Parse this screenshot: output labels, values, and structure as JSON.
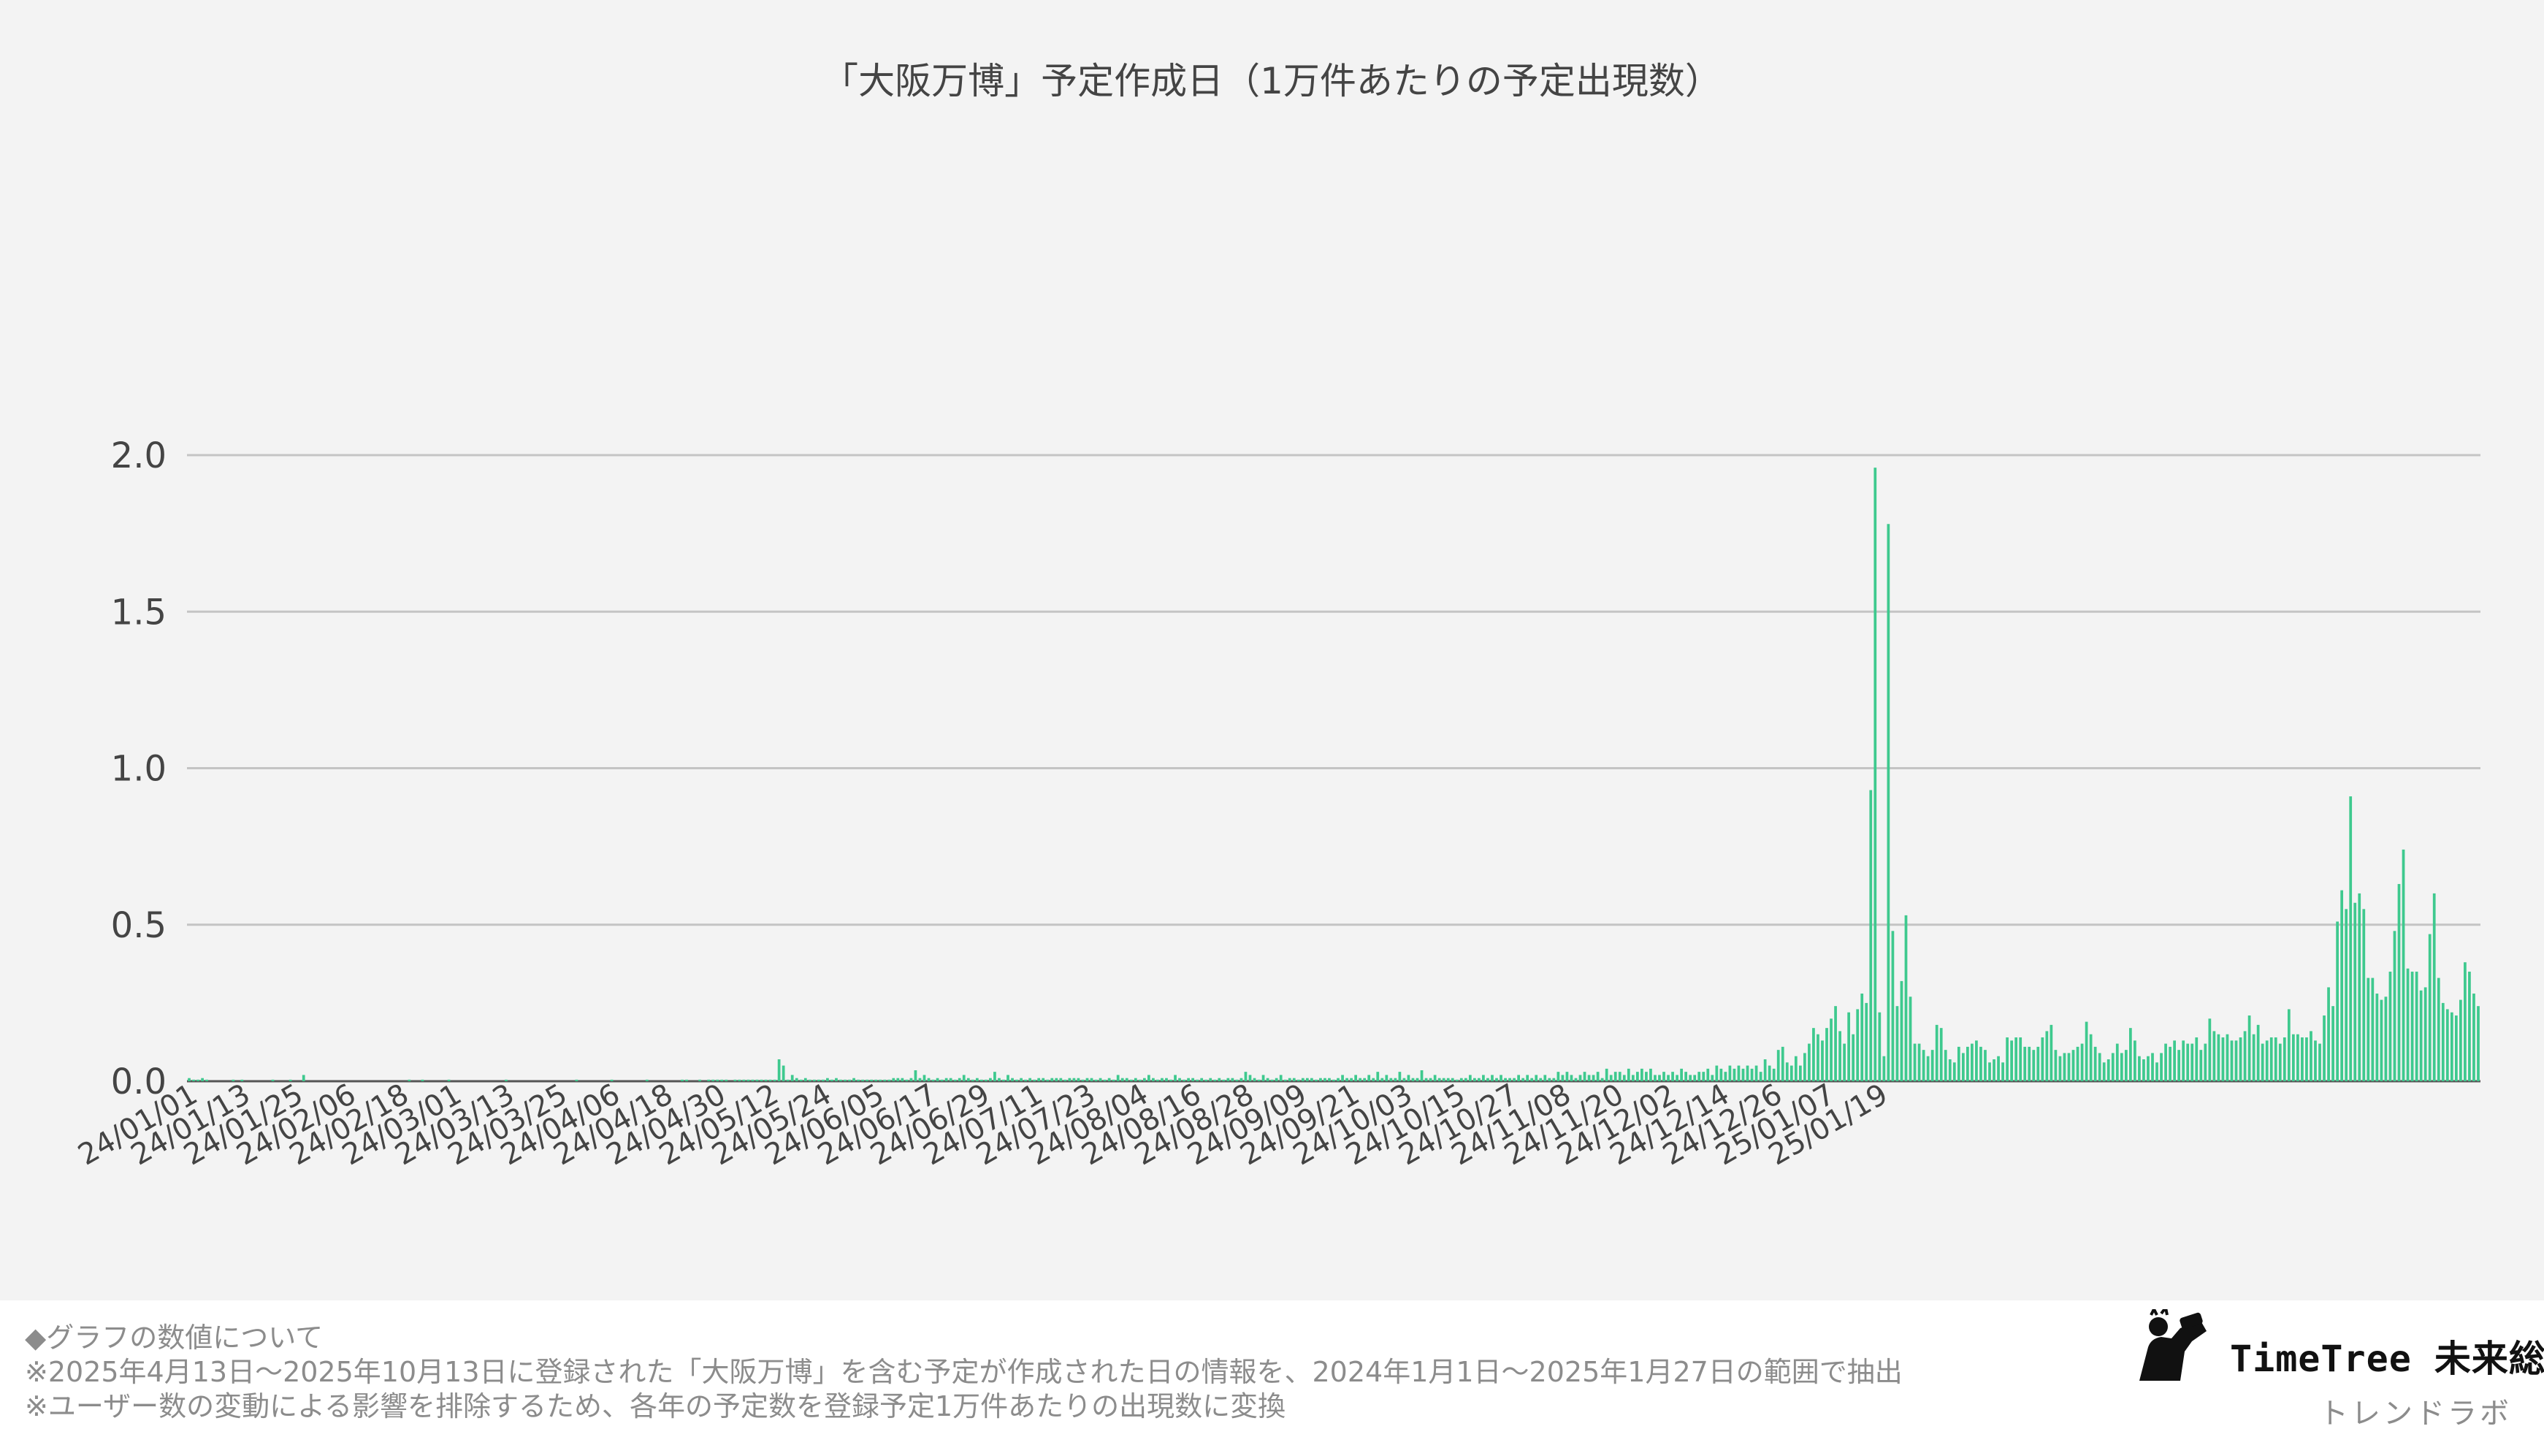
{
  "chart_data": {
    "type": "bar",
    "title": "「大阪万博」予定作成日（1万件あたりの予定出現数）",
    "xlabel": "",
    "ylabel": "",
    "ylim": [
      0,
      2.0
    ],
    "yticks": [
      "0.0",
      "0.5",
      "1.0",
      "1.5",
      "2.0"
    ],
    "grid": true,
    "legend": "none",
    "x_tick_labels": [
      "24/01/01",
      "24/01/13",
      "24/01/25",
      "24/02/06",
      "24/02/18",
      "24/03/01",
      "24/03/13",
      "24/03/25",
      "24/04/06",
      "24/04/18",
      "24/04/30",
      "24/05/12",
      "24/05/24",
      "24/06/05",
      "24/06/17",
      "24/06/29",
      "24/07/11",
      "24/07/23",
      "24/08/04",
      "24/08/16",
      "24/08/28",
      "24/09/09",
      "24/09/21",
      "24/10/03",
      "24/10/15",
      "24/10/27",
      "24/11/08",
      "24/11/20",
      "24/12/02",
      "24/12/14",
      "24/12/26",
      "25/01/07",
      "25/01/19"
    ],
    "x_start": "24/01/01",
    "x_end": "25/01/27",
    "bar_color": "#3ec98e",
    "values": [
      0.01,
      0.005,
      0.005,
      0.01,
      0.005,
      0,
      0,
      0,
      0,
      0,
      0.005,
      0,
      0.005,
      0,
      0,
      0,
      0,
      0,
      0,
      0.005,
      0,
      0,
      0,
      0.005,
      0,
      0,
      0.02,
      0,
      0,
      0,
      0,
      0,
      0,
      0,
      0,
      0,
      0,
      0,
      0,
      0,
      0,
      0,
      0,
      0,
      0,
      0,
      0,
      0,
      0,
      0,
      0.005,
      0,
      0,
      0.005,
      0,
      0,
      0,
      0,
      0,
      0.005,
      0,
      0,
      0,
      0,
      0,
      0,
      0,
      0,
      0,
      0,
      0,
      0,
      0.005,
      0,
      0,
      0,
      0,
      0,
      0,
      0,
      0,
      0,
      0,
      0,
      0,
      0,
      0,
      0,
      0.005,
      0,
      0,
      0,
      0,
      0,
      0,
      0,
      0.005,
      0,
      0,
      0,
      0,
      0,
      0,
      0,
      0.005,
      0,
      0,
      0,
      0,
      0,
      0,
      0,
      0.005,
      0.005,
      0,
      0,
      0.005,
      0,
      0.005,
      0.005,
      0.005,
      0.005,
      0.005,
      0,
      0.005,
      0.005,
      0.005,
      0.005,
      0.005,
      0.005,
      0.005,
      0.005,
      0.005,
      0.005,
      0.07,
      0.05,
      0.005,
      0.02,
      0.01,
      0.005,
      0.01,
      0.005,
      0.005,
      0.005,
      0.005,
      0.01,
      0.005,
      0.01,
      0.005,
      0.005,
      0.005,
      0.01,
      0.005,
      0.005,
      0.005,
      0.005,
      0.005,
      0.005,
      0.005,
      0.005,
      0.01,
      0.01,
      0.01,
      0.005,
      0.01,
      0.035,
      0.01,
      0.02,
      0.01,
      0.005,
      0.01,
      0.005,
      0.01,
      0.01,
      0.005,
      0.01,
      0.02,
      0.01,
      0.005,
      0.01,
      0.005,
      0.005,
      0.01,
      0.03,
      0.01,
      0.005,
      0.02,
      0.01,
      0.005,
      0.01,
      0.005,
      0.01,
      0.005,
      0.01,
      0.01,
      0.005,
      0.01,
      0.01,
      0.01,
      0.005,
      0.01,
      0.01,
      0.01,
      0.005,
      0.01,
      0.01,
      0.005,
      0.01,
      0.005,
      0.01,
      0.005,
      0.02,
      0.01,
      0.01,
      0.005,
      0.01,
      0.005,
      0.01,
      0.02,
      0.01,
      0.005,
      0.01,
      0.01,
      0.005,
      0.02,
      0.01,
      0.005,
      0.01,
      0.01,
      0.005,
      0.01,
      0.005,
      0.01,
      0.005,
      0.01,
      0.005,
      0.01,
      0.01,
      0.005,
      0.01,
      0.03,
      0.02,
      0.01,
      0.005,
      0.02,
      0.01,
      0.005,
      0.01,
      0.02,
      0.005,
      0.01,
      0.01,
      0.005,
      0.01,
      0.01,
      0.01,
      0.005,
      0.01,
      0.01,
      0.01,
      0.005,
      0.01,
      0.02,
      0.01,
      0.01,
      0.02,
      0.01,
      0.01,
      0.02,
      0.01,
      0.03,
      0.01,
      0.02,
      0.01,
      0.01,
      0.03,
      0.01,
      0.02,
      0.01,
      0.01,
      0.035,
      0.01,
      0.01,
      0.02,
      0.01,
      0.01,
      0.01,
      0.01,
      0.005,
      0.01,
      0.01,
      0.02,
      0.01,
      0.01,
      0.02,
      0.01,
      0.02,
      0.01,
      0.02,
      0.01,
      0.01,
      0.01,
      0.02,
      0.01,
      0.02,
      0.01,
      0.02,
      0.01,
      0.02,
      0.01,
      0.01,
      0.03,
      0.02,
      0.03,
      0.02,
      0.01,
      0.02,
      0.03,
      0.02,
      0.02,
      0.03,
      0.01,
      0.04,
      0.02,
      0.03,
      0.03,
      0.02,
      0.04,
      0.02,
      0.03,
      0.04,
      0.03,
      0.04,
      0.02,
      0.02,
      0.03,
      0.02,
      0.03,
      0.02,
      0.04,
      0.03,
      0.02,
      0.02,
      0.03,
      0.03,
      0.04,
      0.02,
      0.05,
      0.04,
      0.03,
      0.05,
      0.04,
      0.05,
      0.04,
      0.05,
      0.04,
      0.05,
      0.03,
      0.07,
      0.05,
      0.04,
      0.1,
      0.11,
      0.06,
      0.05,
      0.08,
      0.05,
      0.09,
      0.12,
      0.17,
      0.15,
      0.13,
      0.17,
      0.2,
      0.24,
      0.16,
      0.12,
      0.22,
      0.15,
      0.23,
      0.28,
      0.25,
      0.93,
      1.96,
      0.22,
      0.08,
      1.78,
      0.48,
      0.24,
      0.32,
      0.53,
      0.27,
      0.12,
      0.12,
      0.1,
      0.08,
      0.1,
      0.18,
      0.17,
      0.1,
      0.07,
      0.06,
      0.11,
      0.09,
      0.11,
      0.12,
      0.13,
      0.11,
      0.1,
      0.06,
      0.07,
      0.08,
      0.06,
      0.14,
      0.13,
      0.14,
      0.14,
      0.11,
      0.11,
      0.1,
      0.11,
      0.14,
      0.16,
      0.18,
      0.1,
      0.08,
      0.09,
      0.09,
      0.1,
      0.11,
      0.12,
      0.19,
      0.15,
      0.11,
      0.09,
      0.06,
      0.07,
      0.09,
      0.12,
      0.09,
      0.1,
      0.17,
      0.13,
      0.08,
      0.07,
      0.08,
      0.09,
      0.06,
      0.09,
      0.12,
      0.11,
      0.13,
      0.1,
      0.13,
      0.12,
      0.12,
      0.14,
      0.1,
      0.12,
      0.2,
      0.16,
      0.15,
      0.14,
      0.15,
      0.13,
      0.13,
      0.14,
      0.16,
      0.21,
      0.15,
      0.18,
      0.12,
      0.13,
      0.14,
      0.14,
      0.12,
      0.14,
      0.23,
      0.15,
      0.15,
      0.14,
      0.14,
      0.16,
      0.13,
      0.12,
      0.21,
      0.3,
      0.24,
      0.51,
      0.61,
      0.55,
      0.91,
      0.57,
      0.6,
      0.55,
      0.33,
      0.33,
      0.28,
      0.26,
      0.27,
      0.35,
      0.48,
      0.63,
      0.74,
      0.36,
      0.35,
      0.35,
      0.29,
      0.3,
      0.47,
      0.6,
      0.33,
      0.25,
      0.23,
      0.22,
      0.21,
      0.26,
      0.38,
      0.35,
      0.28,
      0.24
    ]
  },
  "footer": {
    "line1": "◆グラフの数値について",
    "line2": "※2025年4月13日〜2025年10月13日に登録された「大阪万博」を含む予定が作成された日の情報を、2024年1月1日〜2025年1月27日の範囲で抽出",
    "line3": "※ユーザー数の変動による影響を排除するため、各年の予定数を登録予定1万件あたりの出現数に変換"
  },
  "brand": {
    "name": "TimeTree 未来総研",
    "sub": "トレンドラボ"
  }
}
